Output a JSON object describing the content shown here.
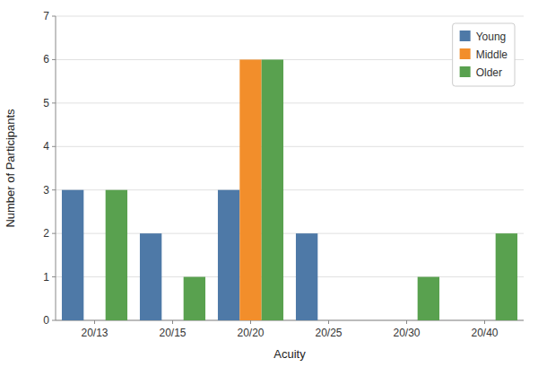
{
  "chart_data": {
    "type": "bar",
    "xlabel": "Acuity",
    "ylabel": "Number of Participants",
    "categories": [
      "20/13",
      "20/15",
      "20/20",
      "20/25",
      "20/30",
      "20/40"
    ],
    "series": [
      {
        "name": "Young",
        "color": "#4e79a7",
        "values": [
          3,
          2,
          3,
          2,
          0,
          0
        ]
      },
      {
        "name": "Middle",
        "color": "#f28e2b",
        "values": [
          0,
          0,
          6,
          0,
          0,
          0
        ]
      },
      {
        "name": "Older",
        "color": "#59a14f",
        "values": [
          3,
          1,
          6,
          0,
          1,
          2
        ]
      }
    ],
    "ylim": [
      0,
      7
    ],
    "yticks": [
      0,
      1,
      2,
      3,
      4,
      5,
      6,
      7
    ],
    "grid": true,
    "legend": "upper right"
  }
}
